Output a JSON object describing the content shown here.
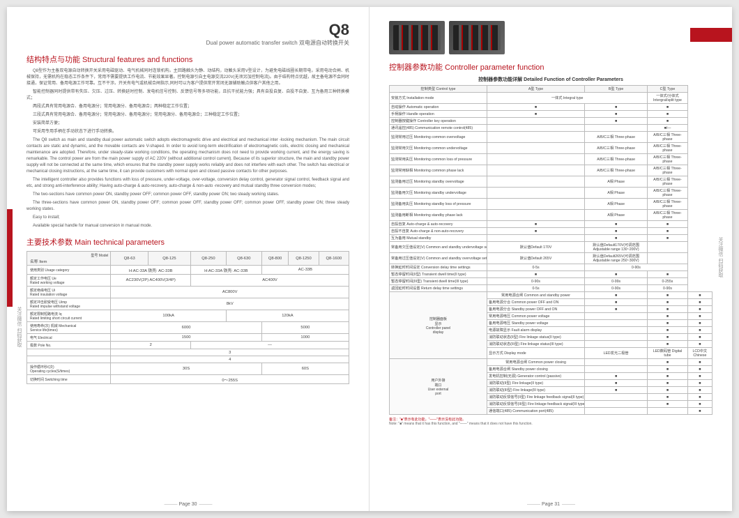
{
  "header": {
    "model": "Q8",
    "subtitle_en": "Dual power automatic transfer switch",
    "subtitle_cn": "双电源自动转换开关"
  },
  "left": {
    "section1_title": "结构特点与功能 Structural features and functions",
    "para_cn": [
      "Q8型作为主备双电源自动转换开关采用电磁驱动、电气机械同时连锁机构。主回路触头为静、动结构，动触头采用V型设计，为避免电磁线圈长期带电，采用电动合闸、机械保持，无需机构在稳态工作条件下，常用不需要提供工作电流、节能效果显著。控制电源引自主电源交流220V(无须另加控制电流)。由于结构特点优越，故主备电源不会同时接通，保证常用、备用电源工作可靠。互不干涉。开关有电气或机械合闸指示,同时可以为客户提供常开常闭无源辅助触点供客户其他之用。",
      "智能控制器同时提供带有失压、欠压、过压、转换延时控制、发电机信号控制、反馈信号等多项功能，且抗干扰能力强；具有自投自复、自投不自复、互为备用三种转换模式；",
      "两段式具有常用电源合、备用电源分；常用电源分、备用电源合；两种稳定工作位置；",
      "三段式具有常用电源合、备用电源分；常用电源分、备用电源分；常用电源分、备用电源合；三种稳定工作位置；",
      "安装简单方便；",
      "可采用专用手柄在手动状态下进行手动转换。"
    ],
    "para_en": [
      "The       Q8 switch as main and standby dual power automatic switch adopts electromagnetic drive and electrical and mechanical inter -locking mechanism. The main circuit contacts are static and dynamic, and the movable contacts are V-shaped. In order to avoid long-term electrification of electromagnetic coils, electric closing and mechanical maintenance are adopted. Therefore, under steady-state working conditions, the operating mechanism does not need to provide working current, and the energy saving is remarkable. The control power are from the main power supply of AC 220V (without additional control current). Because of its superior structure, the main and standby power supply will not be connected at the same time, which ensures that the standby power supply works reliably and does not interfere with each other. The switch has electrical or mechanical closing instructions, at the same time, it can provide customers with normal open and closed passive contacts for other purposes.",
      "The intelligent controller also provides functions with loss of pressure, under-voltage, over-voltage, conversion delay control, generator signal control, feedback signal and etc, and strong anti-interference ability; Having auto-charge & auto-recovery, auto-charge & non-auto -recovery and mutual standby three conversion modes;",
      "The two-sections have common power ON, standby power OFF; common power OFF, standby power ON; two steady working states.",
      "The three-sections have common power ON, standby power OFF; common power OFF, standby power OFF; common power OFF, standby power ON; three steady working states.",
      "Easy to install;",
      "Available special handle for manual conversion in manual mode."
    ],
    "section2_title": "主要技术参数 Main technical parameters",
    "tech_table": {
      "headers": [
        "名称 Item",
        "Q8-63",
        "Q8-125",
        "Q8-250",
        "Q8-630",
        "Q8-800",
        "Q8-1250",
        "Q8-1600"
      ],
      "model_label": "型号 Model",
      "rows": [
        {
          "label": "使用类别 Usage category",
          "cells": [
            [
              "H:AC-33A   铁壳: AC-33B",
              2
            ],
            [
              "H:AC-33A   铁壳: AC-33B",
              2
            ],
            [
              "AC-33B",
              3
            ]
          ]
        },
        {
          "label": "额定工作电压 Ue\nRated working voltage",
          "cells": [
            [
              "AC230V(2P)   AC400V(3/4P)",
              2
            ],
            [
              "AC400V",
              5
            ]
          ]
        },
        {
          "label": "额定绝缘电压 Ui\nRated insulation voltage",
          "cells": [
            [
              "AC800V",
              7
            ]
          ]
        },
        {
          "label": "额定冲击耐受电压 Uimp\nRated impulse withstand voltage",
          "cells": [
            [
              "8kV",
              7
            ]
          ]
        },
        {
          "label": "额定限制短路电流 Iq\nRated limiting short circuit current",
          "cells": [
            [
              "100kA",
              3
            ],
            [
              "120kA",
              4
            ]
          ]
        },
        {
          "label": "使用寿命(次) 机械 Mechanical\nService life(times)",
          "cells": [
            [
              "6000",
              4
            ],
            [
              "5000",
              3
            ]
          ]
        },
        {
          "label": "电气 Electrical",
          "cells": [
            [
              "1500",
              4
            ],
            [
              "1000",
              3
            ]
          ]
        },
        {
          "label": "极数 Pole No.",
          "cells": [
            [
              "2",
              2
            ],
            [
              "—",
              5
            ]
          ],
          "multi": [
            [
              "3",
              7
            ],
            [
              "4",
              7
            ]
          ]
        },
        {
          "label": "操作循环秒/(次)\nOperating cycles(S/times)",
          "cells": [
            [
              "30S",
              4
            ],
            [
              "60S",
              3
            ]
          ]
        },
        {
          "label": "切换时间 Switching time",
          "cells": [
            [
              "0～255S",
              7
            ]
          ]
        }
      ]
    },
    "page_num": "Page 30"
  },
  "right": {
    "section_title": "控制器参数功能 Controller parameter function",
    "subhead": "控制器参数功能详解 Detailed Function of Controller Parameters",
    "ctrl_headers": [
      "控制类型 Control type",
      "A型 Type",
      "B型 Type",
      "C型 Type"
    ],
    "ctrl_rows": [
      [
        "安装方式 Installation mode",
        {
          "span": 2,
          "text": "一体式 Integral type"
        },
        "一体式/分体式 Intergral/split type"
      ],
      [
        "自动操作 Automatic operation",
        "■",
        "■",
        "■"
      ],
      [
        "手柄操作 Handle operation",
        "■",
        "■",
        "■"
      ],
      [
        "控制器按键操作 Controller key operation",
        "",
        "■",
        "■"
      ],
      [
        "通讯遥控(485) Communication remote control(485)",
        "",
        "",
        "■/—"
      ],
      [
        "监测常用过压 Monitoring common overvoltage",
        "",
        {
          "text": "A/B/C三相 Three-phase"
        },
        {
          "text": "A/B/C三相 Three-phase"
        }
      ],
      [
        "监测常用欠压 Monitoring common undervoltage",
        "",
        {
          "text": "A/B/C三相 Three-phase"
        },
        {
          "text": "A/B/C三相 Three-phase"
        }
      ],
      [
        "监测常用失压 Monitoring common loss of pressure",
        "",
        {
          "text": "A/B/C三相 Three-phase"
        },
        {
          "text": "A/B/C三相 Three-phase"
        }
      ],
      [
        "监测常用缺相 Monitoring common phase lack",
        "",
        {
          "text": "A/B/C三相 Three-phase"
        },
        {
          "text": "A/B/C三相 Three-phase"
        }
      ],
      [
        "监测备用过压 Monitoring standby overvoltage",
        "",
        "A相 Phase",
        {
          "text": "A/B/C三相 Three-phase"
        }
      ],
      [
        "监测备用欠压 Monitoring standby undervoltage",
        "",
        "A相 Phase",
        {
          "text": "A/B/C三相 Three-phase"
        }
      ],
      [
        "监测备用失压 Monitoring standby loss of pressure",
        "",
        "A相 Phase",
        {
          "text": "A/B/C三相 Three-phase"
        }
      ],
      [
        "监测备用断相 Monitoring standby phase lack",
        "",
        "A相 Phase",
        {
          "text": "A/B/C三相 Three-phase"
        }
      ],
      [
        "自投自复 Auto-charge & auto-recovery",
        "■",
        "■",
        "■"
      ],
      [
        "自投不自复 Auto-charge & non-auto-recovery",
        "■",
        "■",
        "■"
      ],
      [
        "互为备用 Mutual standby",
        "",
        "■",
        "■"
      ],
      [
        "常备用欠压值设定(V) Common and standby undervoltage setting",
        "默认值Default 170V",
        "默认值Default170V(可调范围 Adjustable range 130~200V)",
        ""
      ],
      [
        "常备用过压值设定(V) Common and standby overvoltage setting",
        "默认值Default 265V",
        "默认值Default265V(可调范围 Adjustable range 250~300V)",
        ""
      ],
      [
        "转换延时时间设定 Conversion delay time settings",
        "0-5s",
        {
          "span": 2,
          "text": "0-90s"
        }
      ],
      [
        "暂态停留时间(II型) Transient dwell time(II type)",
        "■",
        "■",
        "■"
      ],
      [
        "暂态停留时间(III型) Transient dwell time(III type)",
        "0-90s",
        "0-99s",
        "0-255s"
      ],
      [
        "返回延时时间设置 Return delay time settings",
        "0-5s",
        "0-90s",
        "0-90s"
      ]
    ],
    "group1_label": "控制器面板\n显示\nController panel\ndisplay",
    "group1_rows": [
      [
        "常用电源合闸 Common and standby power",
        "■",
        "■",
        "■"
      ],
      [
        "备用电源分合 Common power OFF and ON",
        "■",
        "■",
        "■"
      ],
      [
        "备用电源分合 Standby power OFF and ON",
        "■",
        "■",
        "■"
      ],
      [
        "常用电源电压 Common power voltage",
        "",
        "■",
        "■"
      ],
      [
        "备用电源电压 Standby power voltage",
        "",
        "■",
        "■"
      ],
      [
        "电源故障显示 Fault alarm display",
        "",
        "■",
        "■"
      ],
      [
        "消防联动状态(II型) Fire linkage status(II type)",
        "",
        "■",
        "■"
      ],
      [
        "消防联动状态(III型) Fire linkage status(III type)",
        "",
        "■",
        "■"
      ],
      [
        "显示方式 Display mode",
        "LED发光二极管",
        "LED数码管 Digital tube",
        "LCD中文 Chinese"
      ]
    ],
    "group2_label": "用户外接\n端口\nUser external\nport",
    "group2_rows": [
      [
        "常用电源合闸 Common power closing",
        "",
        "■",
        "■"
      ],
      [
        "备用电源合闸 Standby power closing",
        "",
        "■",
        "■"
      ],
      [
        "发电机控制(无源) Generator control (passive)",
        "■",
        "■",
        "■"
      ],
      [
        "消防联动(II型) Fire linkage(II type)",
        "■",
        "■",
        "■"
      ],
      [
        "消防联动(III型) Fire linkage(III type)",
        "■",
        "■",
        "■"
      ],
      [
        "消防联动反馈信号(II型) Fire linkage feedback signal(II type)",
        "",
        "■",
        "■"
      ],
      [
        "消防联动反馈信号(III型) Fire linkage feedback signal(III type)",
        "",
        "■",
        "■"
      ],
      [
        "通信端口(485) Communication port(485)",
        "",
        "",
        "■"
      ]
    ],
    "note_cn": "备注：\"■\"表示有此功能，\"——\"表示没有此功能。",
    "note_en": "Note: \"■\" means that it has this function, and \"——\" means that it does not have this function.",
    "page_num": "Page 31"
  },
  "side_text": "关注微信 扫码获取"
}
